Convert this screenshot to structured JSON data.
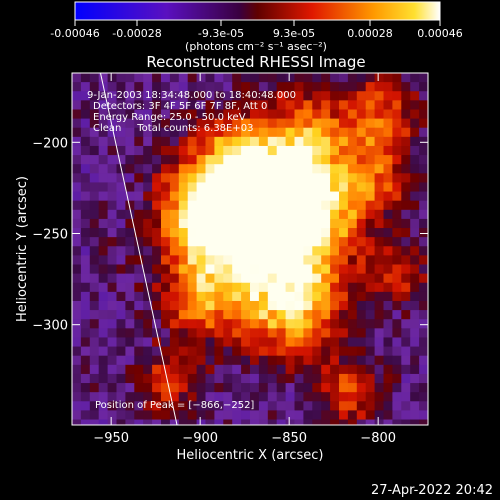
{
  "chart_data": {
    "type": "heatmap",
    "title": "Reconstructed RHESSI Image",
    "colorbar": {
      "ticks": [
        "-0.00046",
        "-0.00028",
        "-9.3e-05",
        "9.3e-05",
        "0.00028",
        "0.00046"
      ],
      "tick_values": [
        -0.00046,
        -0.00028,
        -9.3e-05,
        9.3e-05,
        0.00028,
        0.00046
      ],
      "unit_label": "(photons cm⁻² s⁻¹ asec⁻²)",
      "colors": [
        "#0000ff",
        "#4b0082",
        "#6a1fb0",
        "#8b0000",
        "#ff2a00",
        "#ffd200",
        "#ffffff"
      ]
    },
    "xlabel": "Heliocentric X (arcsec)",
    "ylabel": "Heliocentric Y (arcsec)",
    "xlim": [
      -972,
      -772
    ],
    "ylim": [
      -355,
      -162
    ],
    "xticks": [
      -950,
      -900,
      -850,
      -800
    ],
    "xtick_labels": [
      "−950",
      "−900",
      "−850",
      "−800"
    ],
    "yticks": [
      -200,
      -250,
      -300
    ],
    "ytick_labels": [
      "−200",
      "−250",
      "−300"
    ],
    "annotations": [
      "9-Jan-2003 18:34:48.000 to 18:40:48.000",
      "Detectors: 3F 4F 5F 6F 7F 8F, Att 0",
      "Energy Range: 25.0 - 50.0 keV",
      "Clean     Total counts: 6.38E+03"
    ],
    "peak_label": "Position of Peak = [−866,−252]",
    "peak": [
      -866,
      -252
    ],
    "limb_line": [
      [
        -956,
        -162
      ],
      [
        -913,
        -355
      ]
    ]
  },
  "timestamp": "27-Apr-2022 20:42"
}
